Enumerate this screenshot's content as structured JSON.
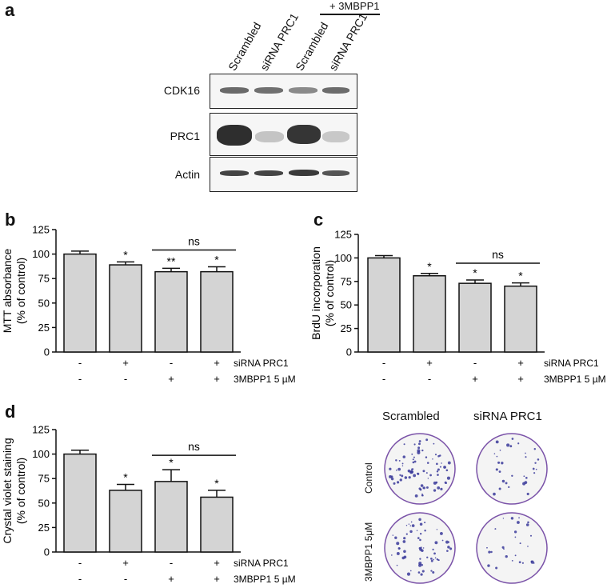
{
  "panels": {
    "a": "a",
    "b": "b",
    "c": "c",
    "d": "d"
  },
  "blot": {
    "treatment_label": "+ 3MBPP1",
    "lanes": [
      "Scrambled",
      "siRNA PRC1",
      "Scrambled",
      "siRNA PRC1"
    ],
    "rows": [
      "CDK16",
      "PRC1",
      "Actin"
    ]
  },
  "chart_data": [
    {
      "panel": "b",
      "type": "bar",
      "ylabel": "MTT absorbance\n(% of control)",
      "ylim": [
        0,
        125
      ],
      "yticks": [
        0,
        25,
        50,
        75,
        100,
        125
      ],
      "values": [
        100,
        89,
        82,
        82
      ],
      "errors": [
        3,
        3,
        3.5,
        5
      ],
      "significance": [
        "",
        "*",
        "**",
        "*"
      ],
      "ns_label": "ns",
      "row1_label": "siRNA PRC1",
      "row1": [
        "-",
        "+",
        "-",
        "+"
      ],
      "row2_label": "3MBPP1 5 µM",
      "row2": [
        "-",
        "-",
        "+",
        "+"
      ]
    },
    {
      "panel": "c",
      "type": "bar",
      "ylabel": "BrdU incorporation\n(% of control)",
      "ylim": [
        0,
        125
      ],
      "yticks": [
        0,
        25,
        50,
        75,
        100,
        125
      ],
      "values": [
        100,
        81,
        73,
        70
      ],
      "errors": [
        2.5,
        2.5,
        3.5,
        3.5
      ],
      "significance": [
        "",
        "*",
        "*",
        "*"
      ],
      "ns_label": "ns",
      "row1_label": "siRNA PRC1",
      "row1": [
        "-",
        "+",
        "-",
        "+"
      ],
      "row2_label": "3MBPP1 5 µM",
      "row2": [
        "-",
        "-",
        "+",
        "+"
      ]
    },
    {
      "panel": "d",
      "type": "bar",
      "ylabel": "Crystal violet staining\n(% of control)",
      "ylim": [
        0,
        125
      ],
      "yticks": [
        0,
        25,
        50,
        75,
        100,
        125
      ],
      "values": [
        100,
        63,
        72,
        56
      ],
      "errors": [
        4,
        6,
        12,
        7
      ],
      "significance": [
        "",
        "*",
        "*",
        "*"
      ],
      "ns_label": "ns",
      "row1_label": "siRNA PRC1",
      "row1": [
        "-",
        "+",
        "-",
        "+"
      ],
      "row2_label": "3MBPP1 5 µM",
      "row2": [
        "-",
        "-",
        "+",
        "+"
      ]
    }
  ],
  "dishes": {
    "col_labels": [
      "Scrambled",
      "siRNA PRC1"
    ],
    "row_labels": [
      "Control",
      "3MBPP1 5μM"
    ],
    "colony_density": [
      [
        0.9,
        0.35
      ],
      [
        0.7,
        0.3
      ]
    ]
  },
  "colors": {
    "bar_fill": "#d4d4d4",
    "axis": "#111111",
    "dish_rim": "#7a52a8",
    "colony": "#3a3a9a"
  }
}
